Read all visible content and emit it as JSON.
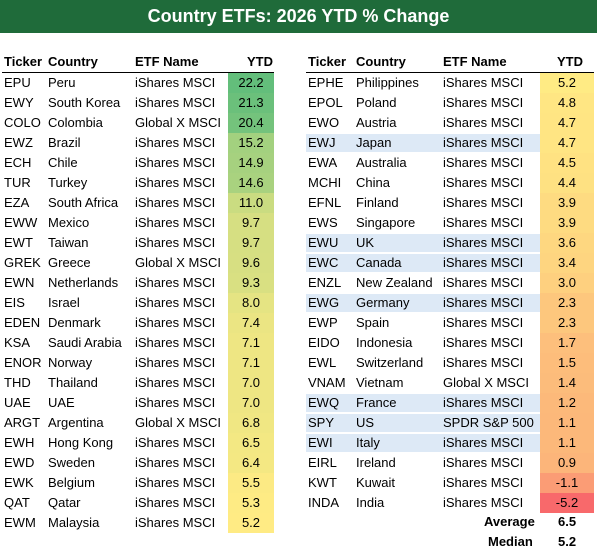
{
  "title": "Country ETFs: 2026 YTD % Change",
  "chart_data": {
    "type": "table",
    "columns": [
      "Ticker",
      "Country",
      "ETF Name",
      "YTD"
    ],
    "left_table": [
      [
        "EPU",
        "Peru",
        "iShares MSCI",
        "22.2",
        false
      ],
      [
        "EWY",
        "South Korea",
        "iShares MSCI",
        "21.3",
        false
      ],
      [
        "COLO",
        "Colombia",
        "Global X MSCI",
        "20.4",
        false
      ],
      [
        "EWZ",
        "Brazil",
        "iShares MSCI",
        "15.2",
        false
      ],
      [
        "ECH",
        "Chile",
        "iShares MSCI",
        "14.9",
        false
      ],
      [
        "TUR",
        "Turkey",
        "iShares MSCI",
        "14.6",
        false
      ],
      [
        "EZA",
        "South Africa",
        "iShares MSCI",
        "11.0",
        false
      ],
      [
        "EWW",
        "Mexico",
        "iShares MSCI",
        "9.7",
        false
      ],
      [
        "EWT",
        "Taiwan",
        "iShares MSCI",
        "9.7",
        false
      ],
      [
        "GREK",
        "Greece",
        "Global X MSCI",
        "9.6",
        false
      ],
      [
        "EWN",
        "Netherlands",
        "iShares MSCI",
        "9.3",
        false
      ],
      [
        "EIS",
        "Israel",
        "iShares MSCI",
        "8.0",
        false
      ],
      [
        "EDEN",
        "Denmark",
        "iShares MSCI",
        "7.4",
        false
      ],
      [
        "KSA",
        "Saudi Arabia",
        "iShares MSCI",
        "7.1",
        false
      ],
      [
        "ENOR",
        "Norway",
        "iShares MSCI",
        "7.1",
        false
      ],
      [
        "THD",
        "Thailand",
        "iShares MSCI",
        "7.0",
        false
      ],
      [
        "UAE",
        "UAE",
        "iShares MSCI",
        "7.0",
        false
      ],
      [
        "ARGT",
        "Argentina",
        "Global X MSCI",
        "6.8",
        false
      ],
      [
        "EWH",
        "Hong Kong",
        "iShares MSCI",
        "6.5",
        false
      ],
      [
        "EWD",
        "Sweden",
        "iShares MSCI",
        "6.4",
        false
      ],
      [
        "EWK",
        "Belgium",
        "iShares MSCI",
        "5.5",
        false
      ],
      [
        "QAT",
        "Qatar",
        "iShares MSCI",
        "5.3",
        false
      ],
      [
        "EWM",
        "Malaysia",
        "iShares MSCI",
        "5.2",
        false
      ]
    ],
    "right_table": [
      [
        "EPHE",
        "Philippines",
        "iShares MSCI",
        "5.2",
        false
      ],
      [
        "EPOL",
        "Poland",
        "iShares MSCI",
        "4.8",
        false
      ],
      [
        "EWO",
        "Austria",
        "iShares MSCI",
        "4.7",
        false
      ],
      [
        "EWJ",
        "Japan",
        "iShares MSCI",
        "4.7",
        true
      ],
      [
        "EWA",
        "Australia",
        "iShares MSCI",
        "4.5",
        false
      ],
      [
        "MCHI",
        "China",
        "iShares MSCI",
        "4.4",
        false
      ],
      [
        "EFNL",
        "Finland",
        "iShares MSCI",
        "3.9",
        false
      ],
      [
        "EWS",
        "Singapore",
        "iShares MSCI",
        "3.9",
        false
      ],
      [
        "EWU",
        "UK",
        "iShares MSCI",
        "3.6",
        true
      ],
      [
        "EWC",
        "Canada",
        "iShares MSCI",
        "3.4",
        true
      ],
      [
        "ENZL",
        "New Zealand",
        "iShares MSCI",
        "3.0",
        false
      ],
      [
        "EWG",
        "Germany",
        "iShares MSCI",
        "2.3",
        true
      ],
      [
        "EWP",
        "Spain",
        "iShares MSCI",
        "2.3",
        false
      ],
      [
        "EIDO",
        "Indonesia",
        "iShares MSCI",
        "1.7",
        false
      ],
      [
        "EWL",
        "Switzerland",
        "iShares MSCI",
        "1.5",
        false
      ],
      [
        "VNAM",
        "Vietnam",
        "Global X MSCI",
        "1.4",
        false
      ],
      [
        "EWQ",
        "France",
        "iShares MSCI",
        "1.2",
        true
      ],
      [
        "SPY",
        "US",
        "SPDR S&P 500",
        "1.1",
        true
      ],
      [
        "EWI",
        "Italy",
        "iShares MSCI",
        "1.1",
        true
      ],
      [
        "EIRL",
        "Ireland",
        "iShares MSCI",
        "0.9",
        false
      ],
      [
        "KWT",
        "Kuwait",
        "iShares MSCI",
        "-1.1",
        false
      ],
      [
        "INDA",
        "India",
        "iShares MSCI",
        "-5.2",
        false
      ]
    ],
    "summary": {
      "average_label": "Average",
      "average_value": "6.5",
      "median_label": "Median",
      "median_value": "5.2"
    },
    "color_scale": {
      "low": "#f8696b",
      "mid": "#ffeb84",
      "high": "#63be7b",
      "highlight": "#dde9f6"
    }
  }
}
